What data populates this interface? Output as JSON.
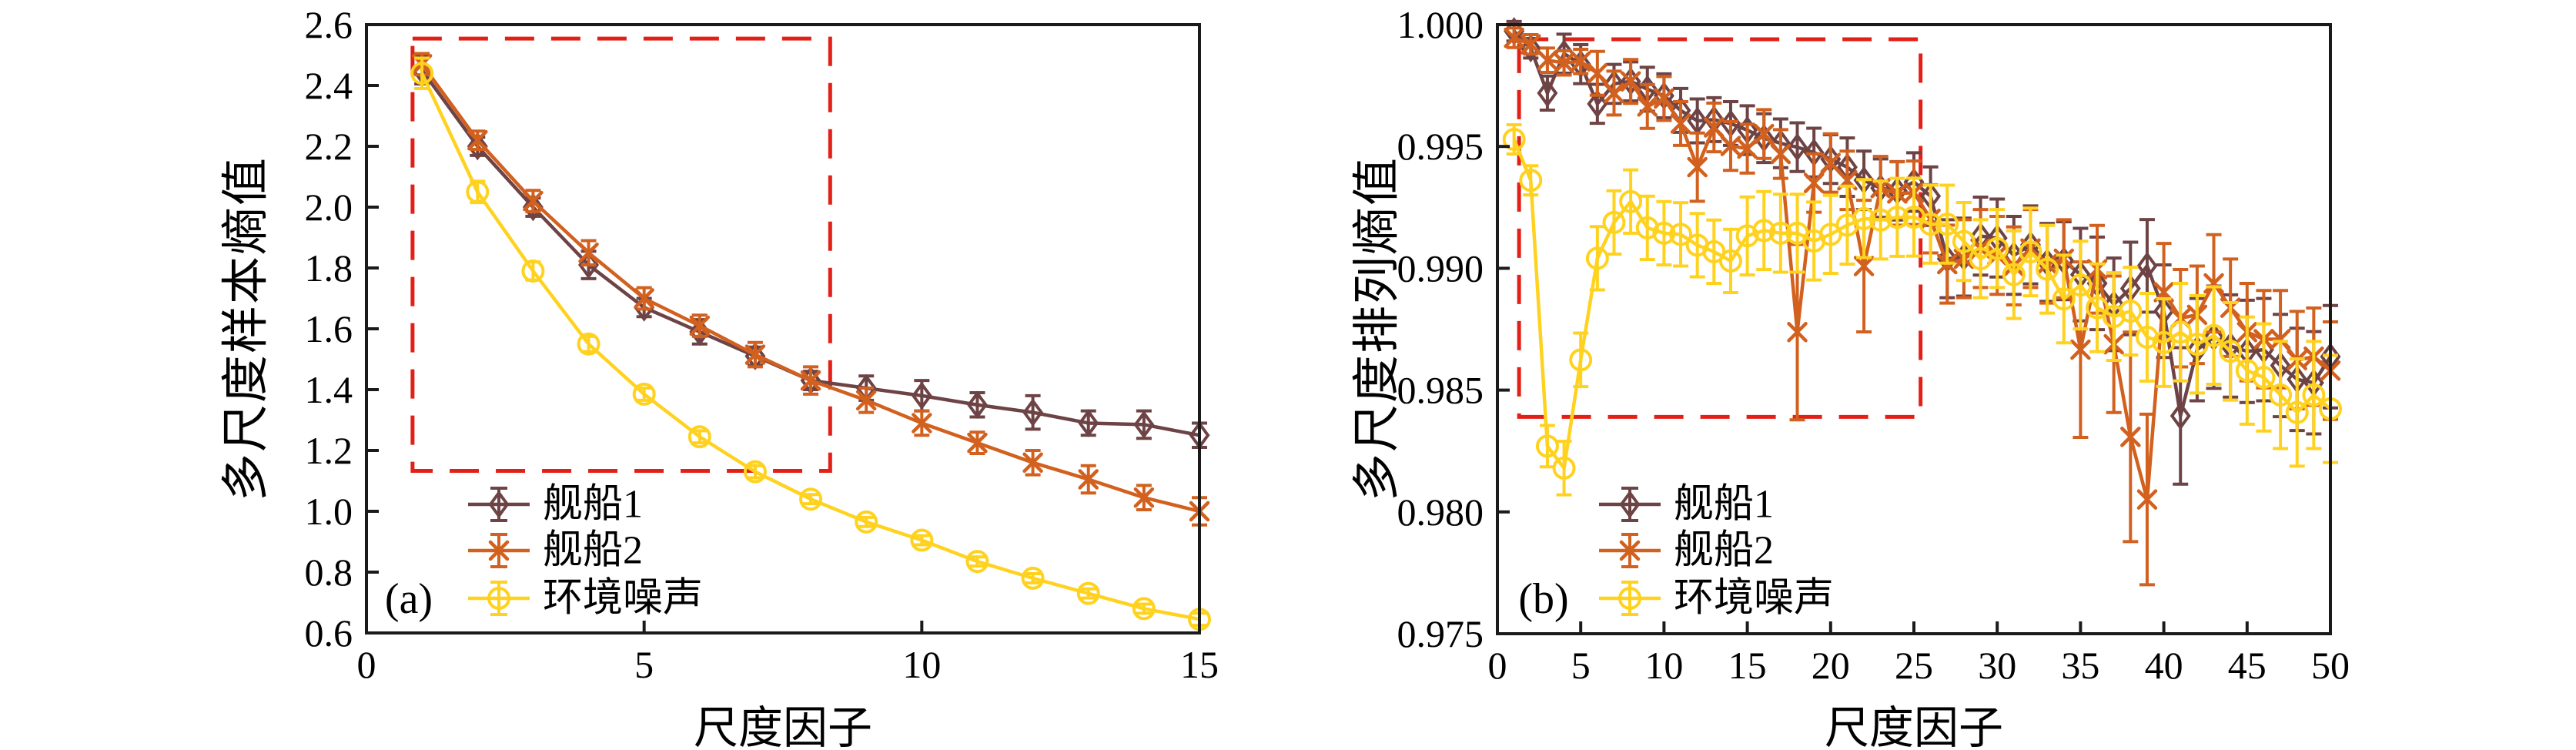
{
  "figure": {
    "background": "#ffffff"
  },
  "chart_data": [
    {
      "panel_label": "(a)",
      "type": "line",
      "xlabel": "尺度因子",
      "ylabel": "多尺度样本熵值",
      "xlim": [
        0,
        15
      ],
      "ylim": [
        0.6,
        2.6
      ],
      "xtick_values": [
        0,
        5,
        10,
        15
      ],
      "xtick_labels": [
        "0",
        "5",
        "10",
        "15"
      ],
      "ytick_values": [
        2.6,
        2.4,
        2.2,
        2.0,
        1.8,
        1.6,
        1.4,
        1.2,
        1.0,
        0.8,
        0.6
      ],
      "ytick_labels": [
        "2.6",
        "2.4",
        "2.2",
        "2.0",
        "1.8",
        "1.6",
        "1.4",
        "1.2",
        "1.0",
        "0.8",
        "0.6"
      ],
      "grid": false,
      "legend_position": "lower-left-inside",
      "highlight_box": {
        "x0": 0.83,
        "x1": 8.35,
        "y0": 1.133,
        "y1": 2.554,
        "color": "#E32017",
        "style": "dashed"
      },
      "series": [
        {
          "name": "舰船1",
          "color": "#6E4345",
          "marker": "diamond",
          "x": [
            1,
            2,
            3,
            4,
            5,
            6,
            7,
            8,
            9,
            10,
            11,
            12,
            13,
            14,
            15
          ],
          "y": [
            2.45,
            2.2,
            2.0,
            1.81,
            1.67,
            1.59,
            1.51,
            1.43,
            1.405,
            1.38,
            1.35,
            1.325,
            1.29,
            1.285,
            1.25
          ],
          "yerr": [
            0.045,
            0.03,
            0.03,
            0.045,
            0.03,
            0.04,
            0.03,
            0.03,
            0.04,
            0.05,
            0.04,
            0.055,
            0.04,
            0.045,
            0.04
          ]
        },
        {
          "name": "舰船2",
          "color": "#D2601E",
          "marker": "x",
          "x": [
            1,
            2,
            3,
            4,
            5,
            6,
            7,
            8,
            9,
            10,
            11,
            12,
            13,
            14,
            15
          ],
          "y": [
            2.47,
            2.22,
            2.02,
            1.85,
            1.7,
            1.61,
            1.515,
            1.43,
            1.365,
            1.29,
            1.225,
            1.16,
            1.105,
            1.045,
            1.0
          ],
          "yerr": [
            0.035,
            0.03,
            0.035,
            0.04,
            0.035,
            0.035,
            0.04,
            0.045,
            0.04,
            0.04,
            0.035,
            0.04,
            0.045,
            0.04,
            0.045
          ]
        },
        {
          "name": "环境噪声",
          "color": "#FFD21F",
          "marker": "circle",
          "x": [
            1,
            2,
            3,
            4,
            5,
            6,
            7,
            8,
            9,
            10,
            11,
            12,
            13,
            14,
            15
          ],
          "y": [
            2.44,
            2.05,
            1.79,
            1.55,
            1.385,
            1.245,
            1.13,
            1.04,
            0.965,
            0.905,
            0.835,
            0.78,
            0.73,
            0.68,
            0.645
          ],
          "yerr": [
            0.05,
            0.035,
            0.03,
            0.025,
            0.02,
            0.02,
            0.02,
            0.015,
            0.015,
            0.015,
            0.015,
            0.015,
            0.015,
            0.015,
            0.02
          ]
        }
      ]
    },
    {
      "panel_label": "(b)",
      "type": "line",
      "xlabel": "尺度因子",
      "ylabel": "多尺度排列熵值",
      "xlim": [
        0,
        50
      ],
      "ylim": [
        0.975,
        1.0
      ],
      "xtick_values": [
        0,
        5,
        10,
        15,
        20,
        25,
        30,
        35,
        40,
        45,
        50
      ],
      "xtick_labels": [
        "0",
        "5",
        "10",
        "15",
        "20",
        "25",
        "30",
        "35",
        "40",
        "45",
        "50"
      ],
      "ytick_values": [
        1.0,
        0.995,
        0.99,
        0.985,
        0.98,
        0.975
      ],
      "ytick_labels": [
        "1.000",
        "0.995",
        "0.990",
        "0.985",
        "0.980",
        "0.975"
      ],
      "grid": false,
      "legend_position": "lower-left-inside",
      "highlight_box": {
        "x0": 1.3,
        "x1": 25.4,
        "y0": 0.9839,
        "y1": 0.9994,
        "color": "#E32017",
        "style": "dashed"
      },
      "series": [
        {
          "name": "舰船1",
          "color": "#6E4345",
          "marker": "diamond",
          "x": [
            1,
            2,
            3,
            4,
            5,
            6,
            7,
            8,
            9,
            10,
            11,
            12,
            13,
            14,
            15,
            16,
            17,
            18,
            19,
            20,
            21,
            22,
            23,
            24,
            25,
            26,
            27,
            28,
            29,
            30,
            31,
            32,
            33,
            34,
            35,
            36,
            37,
            38,
            39,
            40,
            41,
            42,
            43,
            44,
            45,
            46,
            47,
            48,
            49,
            50
          ],
          "y": [
            0.99973,
            0.99903,
            0.99719,
            0.99881,
            0.99838,
            0.99675,
            0.99757,
            0.99767,
            0.99735,
            0.99708,
            0.99648,
            0.99605,
            0.9961,
            0.99594,
            0.99567,
            0.99534,
            0.99513,
            0.99497,
            0.99475,
            0.99448,
            0.99415,
            0.99361,
            0.99329,
            0.99318,
            0.99354,
            0.99296,
            0.99039,
            0.99046,
            0.99132,
            0.99124,
            0.99053,
            0.99096,
            0.99024,
            0.99031,
            0.98974,
            0.98938,
            0.98852,
            0.98917,
            0.9901,
            0.98824,
            0.98394,
            0.98666,
            0.98717,
            0.98681,
            0.98659,
            0.98666,
            0.98601,
            0.98544,
            0.9853,
            0.98637
          ],
          "yerr": [
            0.0004,
            0.0004,
            0.0007,
            0.0008,
            0.0008,
            0.0008,
            0.0008,
            0.0008,
            0.0009,
            0.0009,
            0.0009,
            0.0009,
            0.0009,
            0.0009,
            0.001,
            0.001,
            0.001,
            0.001,
            0.001,
            0.001,
            0.0012,
            0.0012,
            0.0012,
            0.0012,
            0.0012,
            0.0012,
            0.0016,
            0.0016,
            0.0016,
            0.0016,
            0.0016,
            0.0016,
            0.0016,
            0.0016,
            0.0019,
            0.0019,
            0.0019,
            0.0019,
            0.0019,
            0.0019,
            0.0028,
            0.0021,
            0.0021,
            0.0021,
            0.0021,
            0.0021,
            0.0021,
            0.0021,
            0.0021,
            0.0021
          ]
        },
        {
          "name": "舰船2",
          "color": "#D2601E",
          "marker": "x",
          "x": [
            1,
            2,
            3,
            4,
            5,
            6,
            7,
            8,
            9,
            10,
            11,
            12,
            13,
            14,
            15,
            16,
            17,
            18,
            19,
            20,
            21,
            22,
            23,
            24,
            25,
            26,
            27,
            28,
            29,
            30,
            31,
            32,
            33,
            34,
            35,
            36,
            37,
            38,
            39,
            40,
            41,
            42,
            43,
            44,
            45,
            46,
            47,
            48,
            49,
            50
          ],
          "y": [
            0.99946,
            0.99919,
            0.99854,
            0.99843,
            0.99849,
            0.998,
            0.99719,
            0.99767,
            0.99664,
            0.99697,
            0.99594,
            0.99415,
            0.99578,
            0.99502,
            0.99491,
            0.99551,
            0.99469,
            0.98738,
            0.9935,
            0.99432,
            0.99361,
            0.99009,
            0.99329,
            0.99307,
            0.9931,
            0.99203,
            0.99017,
            0.99039,
            0.99081,
            0.99053,
            0.9901,
            0.99081,
            0.99017,
            0.99039,
            0.98666,
            0.98996,
            0.98688,
            0.98308,
            0.98051,
            0.98902,
            0.98795,
            0.98809,
            0.98938,
            0.98838,
            0.98738,
            0.98709,
            0.98709,
            0.98623,
            0.98637,
            0.9858
          ],
          "yerr": [
            0.0004,
            0.0004,
            0.0005,
            0.0005,
            0.0005,
            0.0009,
            0.0009,
            0.0009,
            0.0009,
            0.0009,
            0.0009,
            0.0014,
            0.001,
            0.001,
            0.001,
            0.001,
            0.001,
            0.0036,
            0.0012,
            0.0012,
            0.0012,
            0.0027,
            0.0013,
            0.0013,
            0.0013,
            0.0014,
            0.0016,
            0.0016,
            0.0016,
            0.0016,
            0.0016,
            0.0016,
            0.0016,
            0.0016,
            0.0036,
            0.0018,
            0.0028,
            0.0043,
            0.0035,
            0.002,
            0.002,
            0.002,
            0.002,
            0.002,
            0.002,
            0.002,
            0.002,
            0.002,
            0.002,
            0.002
          ]
        },
        {
          "name": "环境噪声",
          "color": "#FFD21F",
          "marker": "circle",
          "x": [
            1,
            2,
            3,
            4,
            5,
            6,
            7,
            8,
            9,
            10,
            11,
            12,
            13,
            14,
            15,
            16,
            17,
            18,
            19,
            20,
            21,
            22,
            23,
            24,
            25,
            26,
            27,
            28,
            29,
            30,
            31,
            32,
            33,
            34,
            35,
            36,
            37,
            38,
            39,
            40,
            41,
            42,
            43,
            44,
            45,
            46,
            47,
            48,
            49,
            50
          ],
          "y": [
            0.99529,
            0.99361,
            0.9827,
            0.9818,
            0.98624,
            0.99041,
            0.99188,
            0.99274,
            0.99166,
            0.99144,
            0.99139,
            0.99095,
            0.99068,
            0.9903,
            0.99133,
            0.99155,
            0.99144,
            0.99144,
            0.99112,
            0.99139,
            0.99177,
            0.99204,
            0.99198,
            0.99209,
            0.9921,
            0.99181,
            0.99181,
            0.9911,
            0.99039,
            0.99081,
            0.98974,
            0.99067,
            0.98996,
            0.98874,
            0.98931,
            0.98838,
            0.98802,
            0.98824,
            0.98717,
            0.98695,
            0.98738,
            0.98688,
            0.98724,
            0.98659,
            0.9858,
            0.98552,
            0.9848,
            0.98408,
            0.9848,
            0.98423
          ],
          "yerr": [
            0.0006,
            0.0006,
            0.00085,
            0.0011,
            0.0011,
            0.0013,
            0.0013,
            0.0013,
            0.0013,
            0.0013,
            0.0013,
            0.0013,
            0.0013,
            0.0013,
            0.0016,
            0.0016,
            0.0016,
            0.0016,
            0.0016,
            0.0016,
            0.0016,
            0.0016,
            0.0016,
            0.0016,
            0.0016,
            0.0016,
            0.0016,
            0.0016,
            0.0016,
            0.0016,
            0.0018,
            0.0018,
            0.0018,
            0.0018,
            0.0018,
            0.0018,
            0.0018,
            0.0018,
            0.0018,
            0.0018,
            0.002,
            0.002,
            0.002,
            0.002,
            0.0022,
            0.0022,
            0.0022,
            0.0022,
            0.0022,
            0.0022
          ]
        }
      ]
    }
  ]
}
